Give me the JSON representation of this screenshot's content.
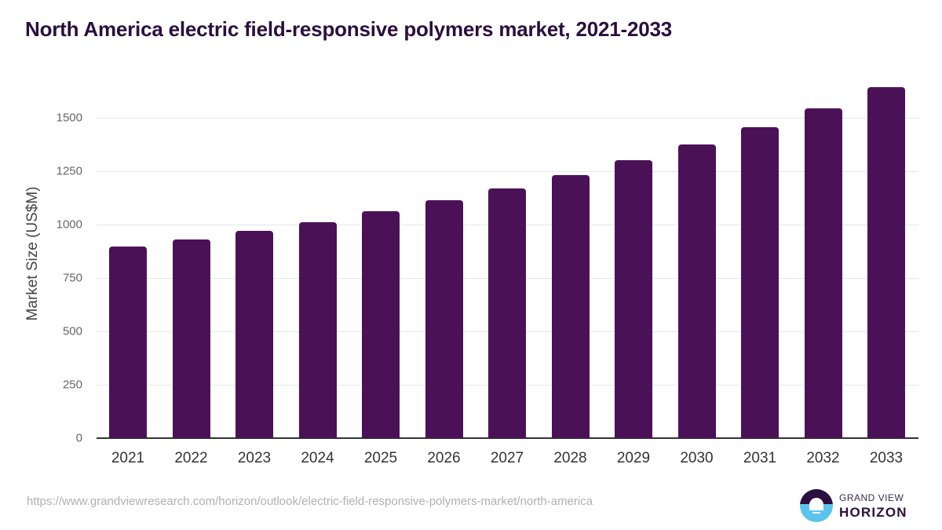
{
  "title": "North America electric field-responsive polymers market, 2021-2033",
  "source_url": "https://www.grandviewresearch.com/horizon/outlook/electric-field-responsive-polymers-market/north-america",
  "logo": {
    "line1": "GRAND VIEW",
    "line2": "HORIZON"
  },
  "colors": {
    "bar": "#4b1157",
    "title": "#2a0f3e",
    "grid": "#e6e6e6"
  },
  "chart_data": {
    "type": "bar",
    "title": "North America electric field-responsive polymers market, 2021-2033",
    "xlabel": "",
    "ylabel": "Market Size (US$M)",
    "ylim": [
      0,
      1650
    ],
    "yticks": [
      0,
      250,
      500,
      750,
      1000,
      1250,
      1500
    ],
    "grid": true,
    "legend": null,
    "categories": [
      "2021",
      "2022",
      "2023",
      "2024",
      "2025",
      "2026",
      "2027",
      "2028",
      "2029",
      "2030",
      "2031",
      "2032",
      "2033"
    ],
    "values": [
      897,
      930,
      970,
      1011,
      1062,
      1114,
      1169,
      1232,
      1301,
      1375,
      1456,
      1544,
      1643
    ]
  }
}
